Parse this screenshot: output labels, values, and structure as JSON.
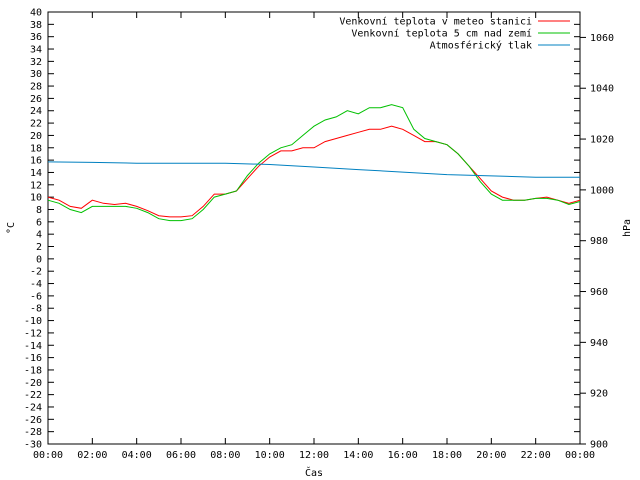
{
  "chart_data": {
    "type": "line",
    "xlabel": "Čas",
    "ylabel_left": "°C",
    "ylabel_right": "hPa",
    "x_ticks": [
      "00:00",
      "02:00",
      "04:00",
      "06:00",
      "08:00",
      "10:00",
      "12:00",
      "14:00",
      "16:00",
      "18:00",
      "20:00",
      "22:00",
      "00:00"
    ],
    "x_range_hours": [
      0,
      24
    ],
    "ylim_left": [
      -30,
      40
    ],
    "ylim_right": [
      900,
      1070
    ],
    "y_ticks_left": [
      "40",
      "38",
      "36",
      "34",
      "32",
      "30",
      "28",
      "26",
      "24",
      "22",
      "20",
      "18",
      "16",
      "14",
      "12",
      "10",
      "8",
      "6",
      "4",
      "2",
      "0",
      "-2",
      "-4",
      "-6",
      "-8",
      "-10",
      "-12",
      "-14",
      "-16",
      "-18",
      "-20",
      "-22",
      "-24",
      "-26",
      "-28",
      "-30"
    ],
    "y_ticks_right": [
      "1060",
      "1040",
      "1020",
      "1000",
      "980",
      "960",
      "940",
      "920",
      "900"
    ],
    "grid": false,
    "legend_position": "top-right",
    "series": [
      {
        "name": "Venkovní teplota v meteo stanici",
        "axis": "left",
        "color": "#ff0000",
        "x": [
          0,
          0.5,
          1,
          1.5,
          2,
          2.5,
          3,
          3.5,
          4,
          4.5,
          5,
          5.5,
          6,
          6.5,
          7,
          7.5,
          8,
          8.5,
          9,
          9.5,
          10,
          10.5,
          11,
          11.5,
          12,
          12.5,
          13,
          13.5,
          14,
          14.5,
          15,
          15.5,
          16,
          16.5,
          17,
          17.5,
          18,
          18.5,
          19,
          19.5,
          20,
          20.5,
          21,
          21.5,
          22,
          22.5,
          23,
          23.5,
          24
        ],
        "y": [
          10,
          9.5,
          8.5,
          8.2,
          9.5,
          9,
          8.8,
          9,
          8.5,
          7.8,
          7,
          6.8,
          6.8,
          7,
          8.5,
          10.5,
          10.5,
          11,
          13,
          15,
          16.5,
          17.5,
          17.5,
          18,
          18,
          19,
          19.5,
          20,
          20.5,
          21,
          21,
          21.5,
          21,
          20,
          19,
          19,
          18.5,
          17,
          15,
          13,
          11,
          10,
          9.5,
          9.5,
          9.8,
          10,
          9.5,
          9,
          9.5
        ]
      },
      {
        "name": "Venkovní teplota 5 cm nad zemí",
        "axis": "left",
        "color": "#00c000",
        "x": [
          0,
          0.5,
          1,
          1.5,
          2,
          2.5,
          3,
          3.5,
          4,
          4.5,
          5,
          5.5,
          6,
          6.5,
          7,
          7.5,
          8,
          8.5,
          9,
          9.5,
          10,
          10.5,
          11,
          11.5,
          12,
          12.5,
          13,
          13.5,
          14,
          14.5,
          15,
          15.5,
          16,
          16.5,
          17,
          17.5,
          18,
          18.5,
          19,
          19.5,
          20,
          20.5,
          21,
          21.5,
          22,
          22.5,
          23,
          23.5,
          24
        ],
        "y": [
          9.5,
          9,
          8,
          7.5,
          8.5,
          8.5,
          8.5,
          8.5,
          8.2,
          7.5,
          6.5,
          6.2,
          6.2,
          6.5,
          8,
          10,
          10.5,
          11,
          13.5,
          15.5,
          17,
          18,
          18.5,
          20,
          21.5,
          22.5,
          23,
          24,
          23.5,
          24.5,
          24.5,
          25,
          24.5,
          21,
          19.5,
          19,
          18.5,
          17,
          15,
          12.5,
          10.5,
          9.5,
          9.5,
          9.5,
          9.8,
          9.8,
          9.5,
          8.8,
          9.3
        ]
      },
      {
        "name": "Atmosférický tlak",
        "axis": "right",
        "color": "#0080c0",
        "x": [
          0,
          2,
          4,
          6,
          8,
          10,
          12,
          14,
          16,
          18,
          20,
          22,
          24
        ],
        "y": [
          1011,
          1010.8,
          1010.5,
          1010.5,
          1010.5,
          1010,
          1009,
          1008,
          1007,
          1006,
          1005.5,
          1005,
          1005
        ]
      }
    ]
  }
}
